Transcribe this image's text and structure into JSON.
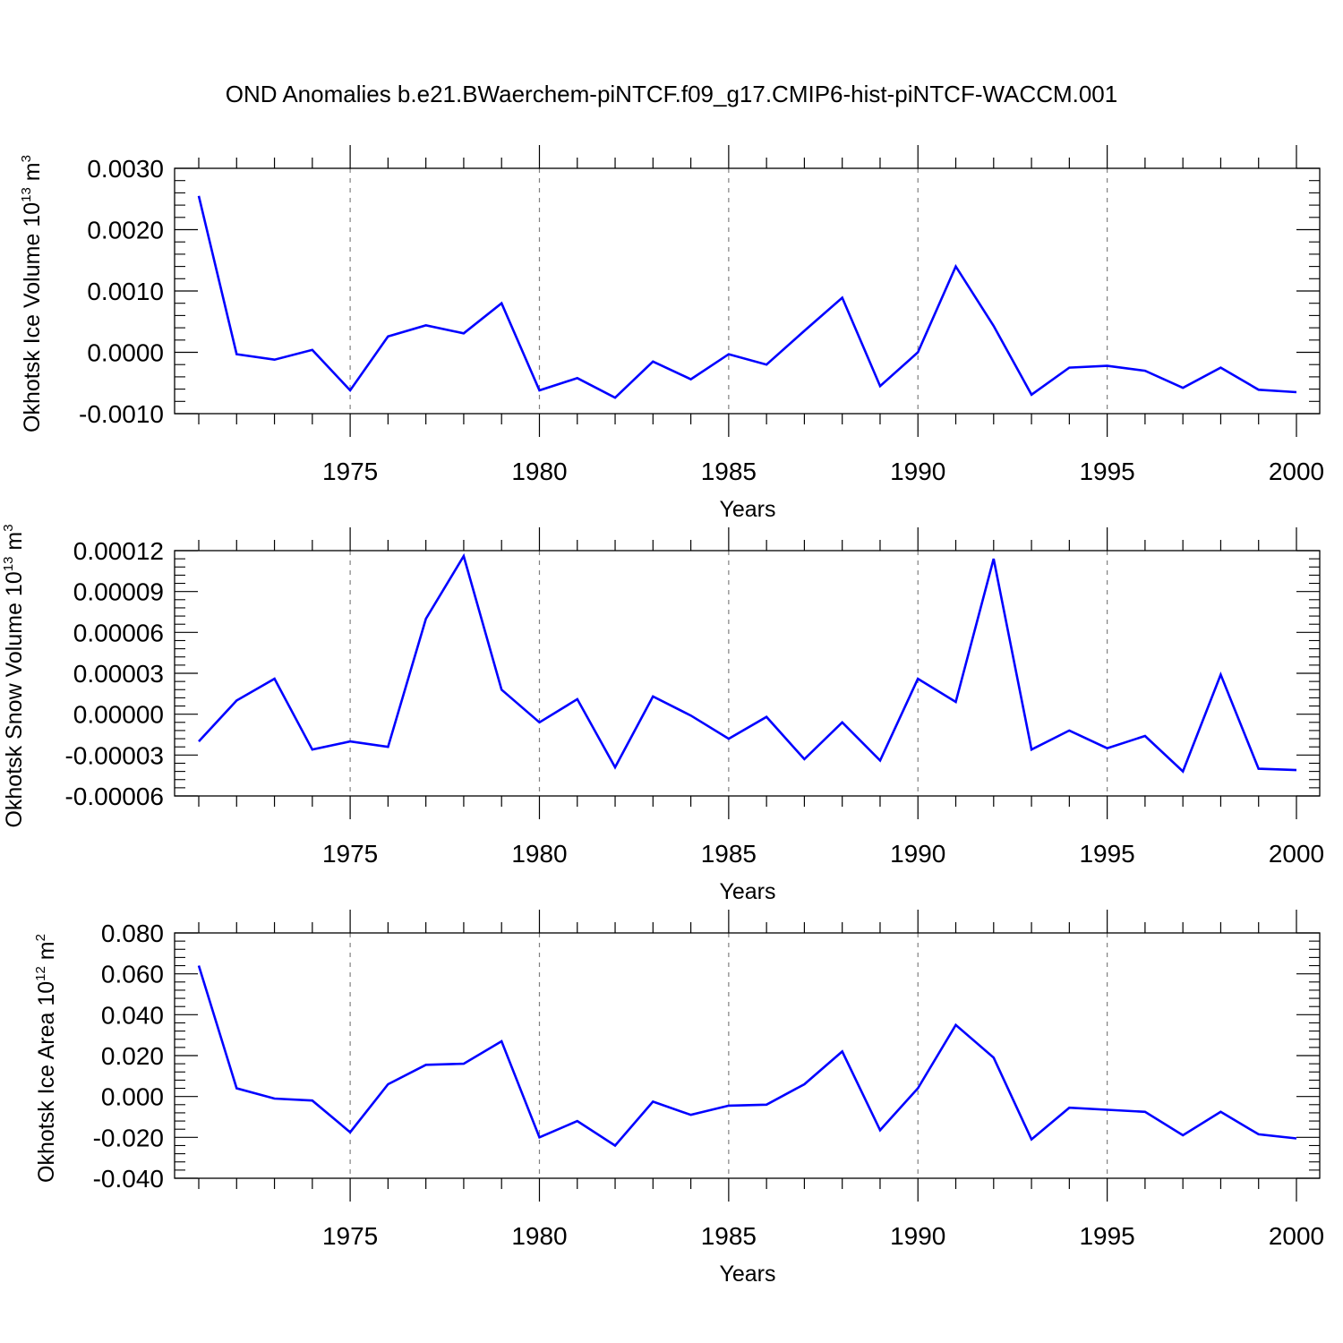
{
  "title": "OND Anomalies b.e21.BWaerchem-piNTCF.f09_g17.CMIP6-hist-piNTCF-WACCM.001",
  "colors": {
    "series": "#0000ff",
    "axes": "#000000",
    "grid": "#808080"
  },
  "chart_data": [
    {
      "type": "line",
      "ylabel": "Okhotsk Ice Volume",
      "ylabel_unit_base": "10",
      "ylabel_unit_exp": "13",
      "ylabel_unit_tail": " m",
      "ylabel_unit_tail_exp": "3",
      "xlabel": "Years",
      "xlim": [
        1971,
        2000
      ],
      "ylim": [
        -0.001,
        0.003
      ],
      "yticks": [
        -0.001,
        0.0,
        0.001,
        0.002,
        0.003
      ],
      "ytick_labels": [
        "-0.0010",
        "0.0000",
        "0.0010",
        "0.0020",
        "0.0030"
      ],
      "xticks": [
        1975,
        1980,
        1985,
        1990,
        1995,
        2000
      ],
      "xtick_labels": [
        "1975",
        "1980",
        "1985",
        "1990",
        "1995",
        "2000"
      ],
      "grid": "vertical dashed at major x ticks",
      "x": [
        1971,
        1972,
        1973,
        1974,
        1975,
        1976,
        1977,
        1978,
        1979,
        1980,
        1981,
        1982,
        1983,
        1984,
        1985,
        1986,
        1987,
        1988,
        1989,
        1990,
        1991,
        1992,
        1993,
        1994,
        1995,
        1996,
        1997,
        1998,
        1999,
        2000
      ],
      "values": [
        0.00255,
        -3e-05,
        -0.00012,
        4e-05,
        -0.00062,
        0.00026,
        0.00044,
        0.00031,
        0.0008,
        -0.00062,
        -0.00042,
        -0.00074,
        -0.00015,
        -0.00044,
        -3e-05,
        -0.0002,
        0.00035,
        0.00089,
        -0.00055,
        0.0,
        0.0014,
        0.00043,
        -0.00069,
        -0.00025,
        -0.00022,
        -0.0003,
        -0.00058,
        -0.00025,
        -0.00061,
        -0.00065
      ]
    },
    {
      "type": "line",
      "ylabel": "Okhotsk Snow Volume",
      "ylabel_unit_base": "10",
      "ylabel_unit_exp": "13",
      "ylabel_unit_tail": " m",
      "ylabel_unit_tail_exp": "3",
      "xlabel": "Years",
      "xlim": [
        1971,
        2000
      ],
      "ylim": [
        -6e-05,
        0.00012
      ],
      "yticks": [
        -6e-05,
        -3e-05,
        0.0,
        3e-05,
        6e-05,
        9e-05,
        0.00012
      ],
      "ytick_labels": [
        "-0.00006",
        "-0.00003",
        "0.00000",
        "0.00003",
        "0.00006",
        "0.00009",
        "0.00012"
      ],
      "xticks": [
        1975,
        1980,
        1985,
        1990,
        1995,
        2000
      ],
      "xtick_labels": [
        "1975",
        "1980",
        "1985",
        "1990",
        "1995",
        "2000"
      ],
      "grid": "vertical dashed at major x ticks",
      "x": [
        1971,
        1972,
        1973,
        1974,
        1975,
        1976,
        1977,
        1978,
        1979,
        1980,
        1981,
        1982,
        1983,
        1984,
        1985,
        1986,
        1987,
        1988,
        1989,
        1990,
        1991,
        1992,
        1993,
        1994,
        1995,
        1996,
        1997,
        1998,
        1999,
        2000
      ],
      "values": [
        -2e-05,
        1e-05,
        2.6e-05,
        -2.6e-05,
        -2e-05,
        -2.4e-05,
        7e-05,
        0.000116,
        1.8e-05,
        -6e-06,
        1.1e-05,
        -3.9e-05,
        1.3e-05,
        -1e-06,
        -1.8e-05,
        -2e-06,
        -3.3e-05,
        -6e-06,
        -3.4e-05,
        2.6e-05,
        9e-06,
        0.000114,
        -2.6e-05,
        -1.2e-05,
        -2.5e-05,
        -1.6e-05,
        -4.2e-05,
        2.9e-05,
        -4e-05,
        -4.1e-05
      ]
    },
    {
      "type": "line",
      "ylabel": "Okhotsk Ice Area",
      "ylabel_unit_base": "10",
      "ylabel_unit_exp": "12",
      "ylabel_unit_tail": " m",
      "ylabel_unit_tail_exp": "2",
      "xlabel": "Years",
      "xlim": [
        1971,
        2000
      ],
      "ylim": [
        -0.04,
        0.08
      ],
      "yticks": [
        -0.04,
        -0.02,
        0.0,
        0.02,
        0.04,
        0.06,
        0.08
      ],
      "ytick_labels": [
        "-0.040",
        "-0.020",
        "0.000",
        "0.020",
        "0.040",
        "0.060",
        "0.080"
      ],
      "xticks": [
        1975,
        1980,
        1985,
        1990,
        1995,
        2000
      ],
      "xtick_labels": [
        "1975",
        "1980",
        "1985",
        "1990",
        "1995",
        "2000"
      ],
      "grid": "vertical dashed at major x ticks",
      "x": [
        1971,
        1972,
        1973,
        1974,
        1975,
        1976,
        1977,
        1978,
        1979,
        1980,
        1981,
        1982,
        1983,
        1984,
        1985,
        1986,
        1987,
        1988,
        1989,
        1990,
        1991,
        1992,
        1993,
        1994,
        1995,
        1996,
        1997,
        1998,
        1999,
        2000
      ],
      "values": [
        0.064,
        0.004,
        -0.001,
        -0.002,
        -0.0175,
        0.006,
        0.0155,
        0.016,
        0.027,
        -0.02,
        -0.012,
        -0.024,
        -0.0025,
        -0.009,
        -0.0045,
        -0.004,
        0.006,
        0.022,
        -0.0165,
        0.004,
        0.035,
        0.019,
        -0.021,
        -0.0055,
        -0.0065,
        -0.0075,
        -0.019,
        -0.0075,
        -0.0185,
        -0.0205
      ]
    }
  ]
}
